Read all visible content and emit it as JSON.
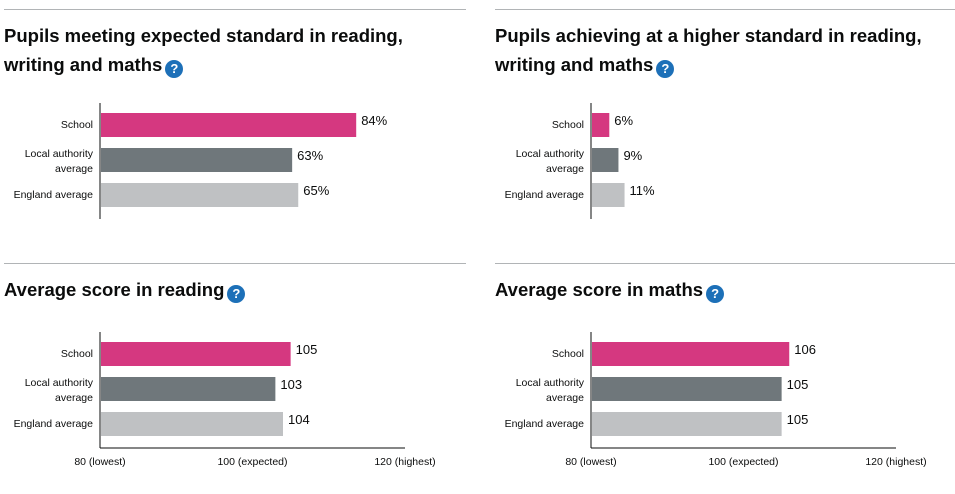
{
  "colors": {
    "school": "#d53880",
    "local_authority": "#6f777b",
    "england": "#bfc1c3",
    "help": "#1d70b8"
  },
  "help_icon": "?",
  "chart_data": [
    {
      "type": "bar",
      "title": "Pupils meeting expected standard in reading, writing and maths",
      "categories": [
        "School",
        "Local authority average",
        "England average"
      ],
      "values": [
        84,
        63,
        65
      ],
      "value_labels": [
        "84%",
        "63%",
        "65%"
      ],
      "xlim": [
        0,
        100
      ],
      "ticks": [],
      "grid": false
    },
    {
      "type": "bar",
      "title": "Pupils achieving at a higher standard in reading, writing and maths",
      "categories": [
        "School",
        "Local authority average",
        "England average"
      ],
      "values": [
        6,
        9,
        11
      ],
      "value_labels": [
        "6%",
        "9%",
        "11%"
      ],
      "xlim": [
        0,
        100
      ],
      "ticks": [],
      "grid": false
    },
    {
      "type": "bar",
      "title": "Average score in reading",
      "categories": [
        "School",
        "Local authority average",
        "England average"
      ],
      "values": [
        105,
        103,
        104
      ],
      "value_labels": [
        "105",
        "103",
        "104"
      ],
      "xlim": [
        80,
        120
      ],
      "ticks": [
        {
          "value": 80,
          "label": "80 (lowest)"
        },
        {
          "value": 100,
          "label": "100 (expected)"
        },
        {
          "value": 120,
          "label": "120 (highest)"
        }
      ],
      "grid": false
    },
    {
      "type": "bar",
      "title": "Average score in maths",
      "categories": [
        "School",
        "Local authority average",
        "England average"
      ],
      "values": [
        106,
        105,
        105
      ],
      "value_labels": [
        "106",
        "105",
        "105"
      ],
      "xlim": [
        80,
        120
      ],
      "ticks": [
        {
          "value": 80,
          "label": "80 (lowest)"
        },
        {
          "value": 100,
          "label": "100 (expected)"
        },
        {
          "value": 120,
          "label": "120 (highest)"
        }
      ],
      "grid": false
    }
  ]
}
